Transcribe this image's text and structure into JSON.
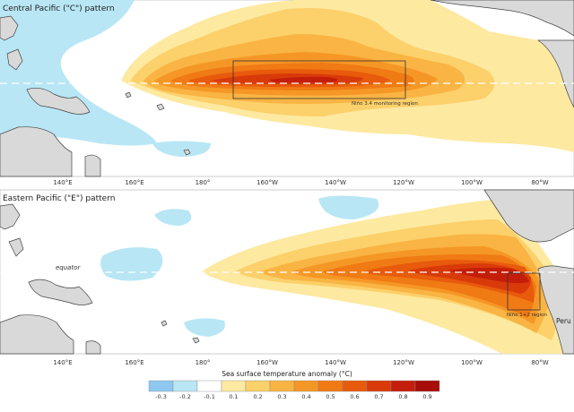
{
  "panels": [
    {
      "title": "Central Pacific (\"C\") pattern",
      "region_label": "Niño 3.4 monitoring region",
      "lon_labels": [
        "140°E",
        "160°E",
        "180°",
        "160°W",
        "140°W",
        "120°W",
        "100°W",
        "80°W"
      ]
    },
    {
      "title": "Eastern Pacific (\"E\") pattern",
      "region_label": "Niño 1+2 region",
      "equator_label": "equator",
      "country_label": "Peru",
      "lon_labels": [
        "140°E",
        "160°E",
        "180°",
        "160°W",
        "140°W",
        "120°W",
        "100°W",
        "80°W"
      ]
    }
  ],
  "legend": {
    "title": "Sea surface temperature anomaly (°C)",
    "ticks": [
      "-0.3",
      "-0.2",
      "-0.1",
      "0.1",
      "0.2",
      "0.3",
      "0.4",
      "0.5",
      "0.6",
      "0.7",
      "0.8",
      "0.9"
    ],
    "colors": [
      "#8ec8f0",
      "#b8e6f5",
      "#ffffff",
      "#fde9a0",
      "#fcd06a",
      "#f9b443",
      "#f59726",
      "#f07a14",
      "#e85a0c",
      "#d93a0a",
      "#c41e0a",
      "#a80d08"
    ]
  }
}
